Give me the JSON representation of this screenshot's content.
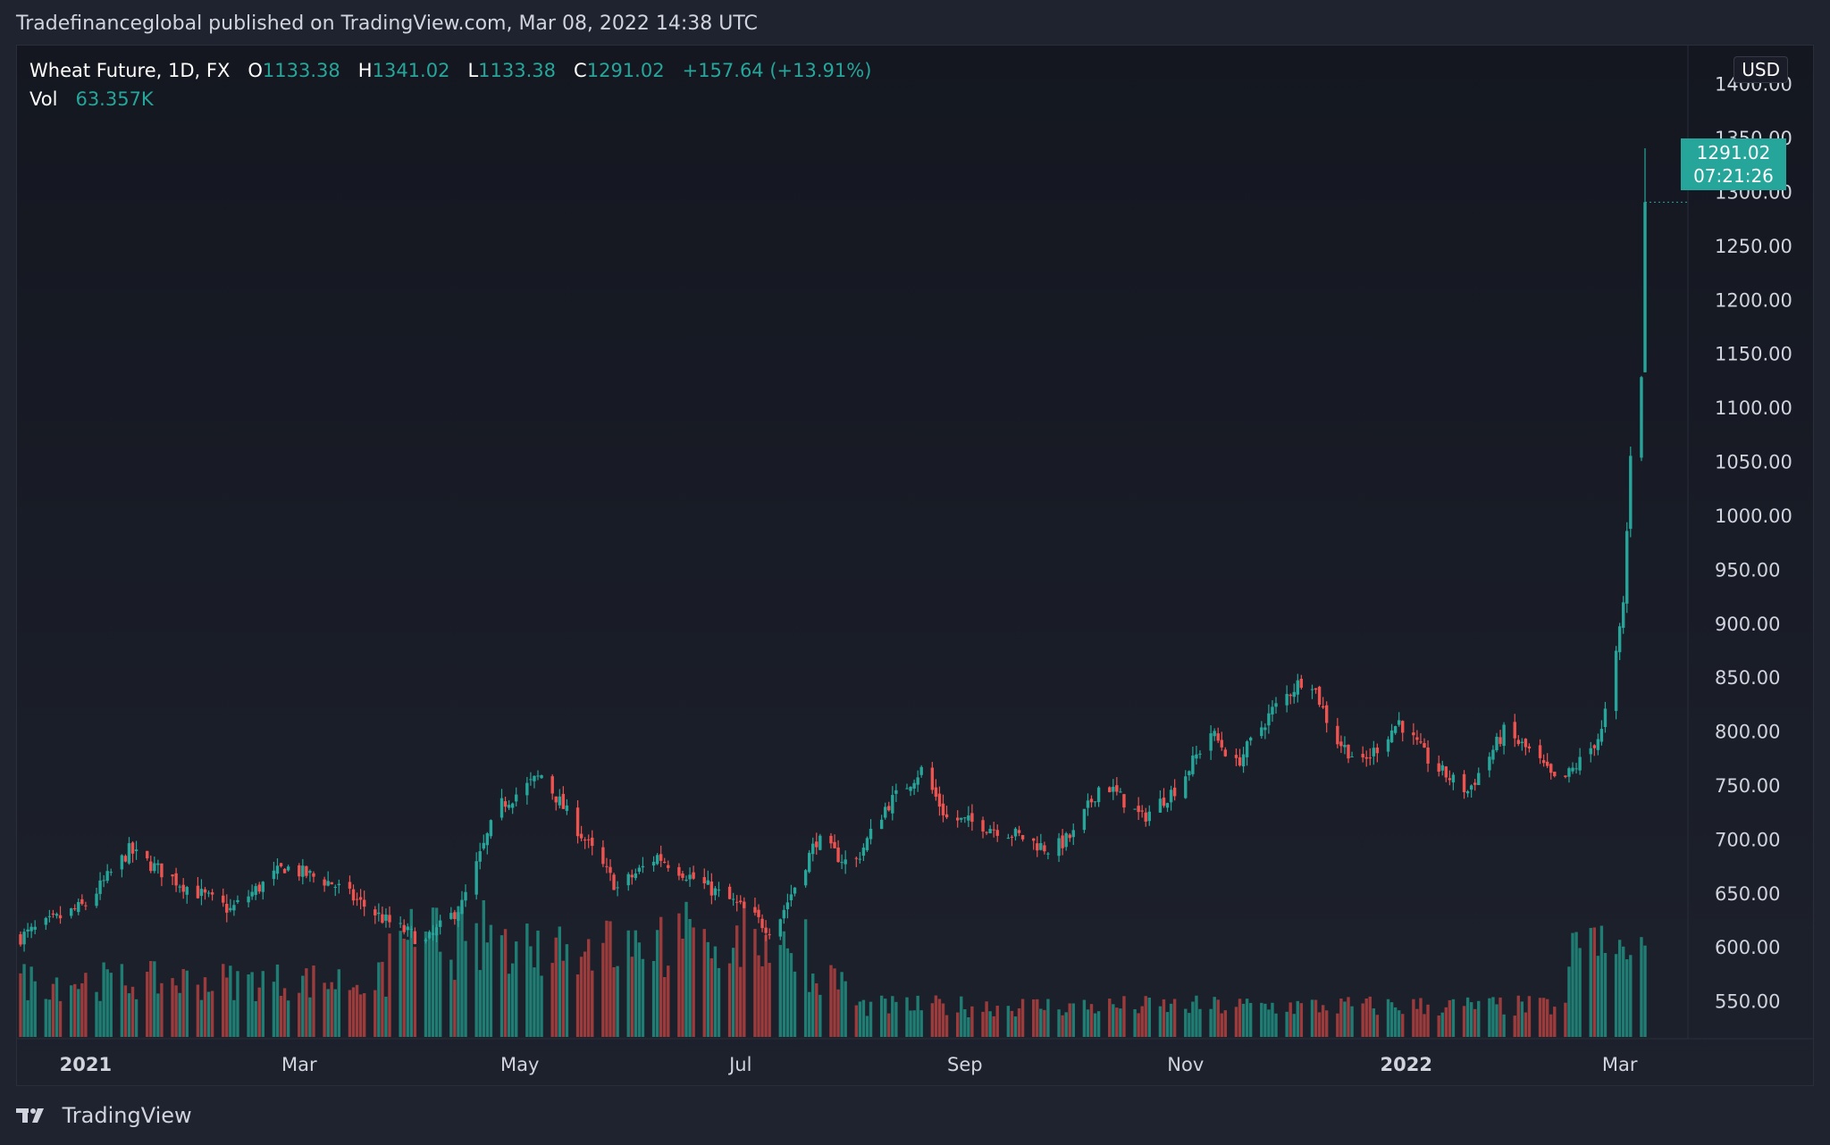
{
  "header": {
    "published_line": "Tradefinanceglobal published on TradingView.com, Mar 08, 2022 14:38 UTC"
  },
  "legend": {
    "symbol": "Wheat Future, 1D, FX",
    "open_label": "O",
    "open": "1133.38",
    "high_label": "H",
    "high": "1341.02",
    "low_label": "L",
    "low": "1133.38",
    "close_label": "C",
    "close": "1291.02",
    "change": "+157.64 (+13.91%)",
    "vol_label": "Vol",
    "vol": "63.357K"
  },
  "price_scale": {
    "currency": "USD",
    "last_price": "1291.02",
    "countdown": "07:21:26"
  },
  "brand": {
    "name": "TradingView"
  },
  "colors": {
    "up": "#26a69a",
    "down": "#ef5350",
    "up_volume": "#1f7d74",
    "down_volume": "#9b3b3c",
    "text": "#d1d4dc",
    "background": "#1f2330"
  },
  "chart_data": {
    "type": "candlestick",
    "symbol": "Wheat Future",
    "interval": "1D",
    "x_tick_labels": [
      "2021",
      "Mar",
      "May",
      "Jul",
      "Sep",
      "Nov",
      "2022",
      "Mar"
    ],
    "x_tick_dates": [
      "2021-01-01",
      "2021-03-01",
      "2021-05-01",
      "2021-07-01",
      "2021-09-01",
      "2021-11-01",
      "2022-01-01",
      "2022-03-01"
    ],
    "y_tick_labels": [
      "550.00",
      "600.00",
      "650.00",
      "700.00",
      "750.00",
      "800.00",
      "850.00",
      "900.00",
      "950.00",
      "1000.00",
      "1050.00",
      "1100.00",
      "1150.00",
      "1200.00",
      "1250.00",
      "1300.00",
      "1350.00",
      "1400.00"
    ],
    "ylim": [
      520,
      1420
    ],
    "grid": false,
    "price_path": [
      {
        "date": "2020-12-14",
        "close": 610
      },
      {
        "date": "2021-01-01",
        "close": 640
      },
      {
        "date": "2021-01-13",
        "close": 690
      },
      {
        "date": "2021-01-27",
        "close": 660
      },
      {
        "date": "2021-02-10",
        "close": 635
      },
      {
        "date": "2021-02-25",
        "close": 675
      },
      {
        "date": "2021-03-10",
        "close": 660
      },
      {
        "date": "2021-03-25",
        "close": 625
      },
      {
        "date": "2021-04-05",
        "close": 605
      },
      {
        "date": "2021-04-15",
        "close": 640
      },
      {
        "date": "2021-04-25",
        "close": 730
      },
      {
        "date": "2021-05-07",
        "close": 760
      },
      {
        "date": "2021-05-15",
        "close": 720
      },
      {
        "date": "2021-05-28",
        "close": 655
      },
      {
        "date": "2021-06-08",
        "close": 685
      },
      {
        "date": "2021-06-20",
        "close": 660
      },
      {
        "date": "2021-06-30",
        "close": 640
      },
      {
        "date": "2021-07-10",
        "close": 615
      },
      {
        "date": "2021-07-15",
        "close": 650
      },
      {
        "date": "2021-07-22",
        "close": 700
      },
      {
        "date": "2021-08-01",
        "close": 675
      },
      {
        "date": "2021-08-10",
        "close": 730
      },
      {
        "date": "2021-08-20",
        "close": 765
      },
      {
        "date": "2021-08-27",
        "close": 720
      },
      {
        "date": "2021-09-05",
        "close": 715
      },
      {
        "date": "2021-09-15",
        "close": 705
      },
      {
        "date": "2021-09-25",
        "close": 690
      },
      {
        "date": "2021-10-01",
        "close": 705
      },
      {
        "date": "2021-10-09",
        "close": 755
      },
      {
        "date": "2021-10-20",
        "close": 720
      },
      {
        "date": "2021-10-30",
        "close": 750
      },
      {
        "date": "2021-11-08",
        "close": 800
      },
      {
        "date": "2021-11-15",
        "close": 770
      },
      {
        "date": "2021-11-25",
        "close": 820
      },
      {
        "date": "2021-12-05",
        "close": 855
      },
      {
        "date": "2021-12-12",
        "close": 795
      },
      {
        "date": "2021-12-20",
        "close": 770
      },
      {
        "date": "2021-12-30",
        "close": 810
      },
      {
        "date": "2022-01-08",
        "close": 770
      },
      {
        "date": "2022-01-18",
        "close": 745
      },
      {
        "date": "2022-01-28",
        "close": 800
      },
      {
        "date": "2022-02-05",
        "close": 780
      },
      {
        "date": "2022-02-12",
        "close": 750
      },
      {
        "date": "2022-02-20",
        "close": 780
      },
      {
        "date": "2022-02-24",
        "close": 800
      },
      {
        "date": "2022-02-28",
        "close": 870
      },
      {
        "date": "2022-03-02",
        "close": 920
      },
      {
        "date": "2022-03-03",
        "close": 985
      },
      {
        "date": "2022-03-04",
        "close": 1060
      },
      {
        "date": "2022-03-07",
        "close": 1133.38
      },
      {
        "date": "2022-03-08",
        "close": 1291.02
      }
    ],
    "last_candle": {
      "date": "2022-03-08",
      "open": 1133.38,
      "high": 1341.02,
      "low": 1133.38,
      "close": 1291.02
    },
    "volume": {
      "label": "Vol",
      "last": "63.357K"
    }
  }
}
